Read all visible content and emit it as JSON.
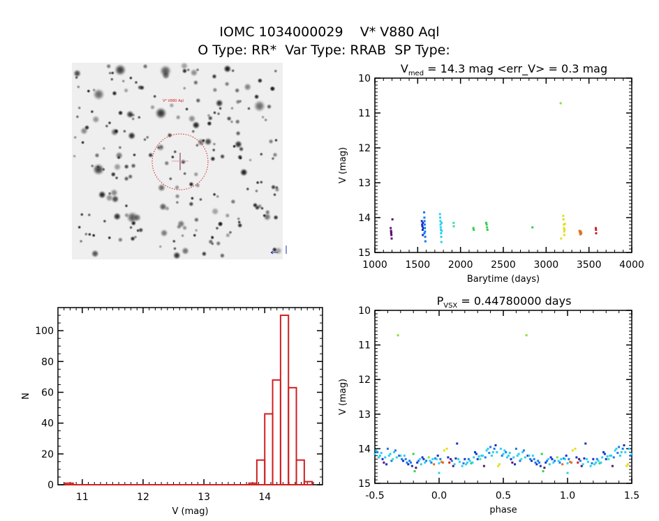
{
  "header": {
    "title_line1": "IOMC 1034000029    V* V880 Aql",
    "title_line2": "O Type: RR*  Var Type: RRAB  SP Type:"
  },
  "image": {
    "target_label": "V* V880 Aql",
    "circle_color": "#d02020"
  },
  "colors": [
    "#5a1070",
    "#1030c8",
    "#1878f0",
    "#28d0f0",
    "#40e0b0",
    "#30d050",
    "#88e030",
    "#e0e020",
    "#e07020",
    "#d02020"
  ],
  "chart_data": [
    {
      "type": "scatter",
      "id": "lightcurve",
      "title_main": "V",
      "title_sub": "med",
      "title_rest": " = 14.3 mag <err_V> = 0.3 mag",
      "xlabel": "Barytime (days)",
      "ylabel": "V (mag)",
      "xlim": [
        1000,
        4000
      ],
      "ylim": [
        15,
        10
      ],
      "xticks": [
        1000,
        1500,
        2000,
        2500,
        3000,
        3500,
        4000
      ],
      "xtick_labels": [
        "1000",
        "1500",
        "2000",
        "2500",
        "3000",
        "3500",
        "4000"
      ],
      "yticks": [
        10,
        11,
        12,
        13,
        14,
        15
      ],
      "ytick_labels": [
        "10",
        "11",
        "12",
        "13",
        "14",
        "15"
      ],
      "points": [
        [
          1185,
          14.3,
          0
        ],
        [
          1188,
          14.38,
          0
        ],
        [
          1190,
          14.45,
          0
        ],
        [
          1193,
          14.5,
          0
        ],
        [
          1196,
          14.6,
          0
        ],
        [
          1205,
          14.05,
          0
        ],
        [
          1192,
          14.42,
          0
        ],
        [
          1548,
          14.1,
          1
        ],
        [
          1552,
          14.2,
          1
        ],
        [
          1555,
          14.25,
          1
        ],
        [
          1558,
          14.35,
          1
        ],
        [
          1560,
          14.5,
          1
        ],
        [
          1562,
          14.15,
          1
        ],
        [
          1565,
          14.3,
          1
        ],
        [
          1575,
          13.85,
          2
        ],
        [
          1578,
          14.0,
          2
        ],
        [
          1580,
          14.1,
          2
        ],
        [
          1582,
          14.2,
          2
        ],
        [
          1584,
          14.3,
          2
        ],
        [
          1586,
          14.4,
          2
        ],
        [
          1588,
          14.55,
          2
        ],
        [
          1590,
          14.68,
          2
        ],
        [
          1578,
          14.45,
          2
        ],
        [
          1760,
          13.9,
          3
        ],
        [
          1763,
          14.0,
          3
        ],
        [
          1765,
          14.1,
          3
        ],
        [
          1767,
          14.2,
          3
        ],
        [
          1769,
          14.28,
          3
        ],
        [
          1771,
          14.35,
          3
        ],
        [
          1773,
          14.45,
          3
        ],
        [
          1775,
          14.55,
          3
        ],
        [
          1777,
          14.7,
          3
        ],
        [
          1779,
          14.15,
          3
        ],
        [
          1781,
          14.38,
          3
        ],
        [
          1920,
          14.15,
          4
        ],
        [
          1922,
          14.25,
          4
        ],
        [
          2150,
          14.3,
          5
        ],
        [
          2155,
          14.35,
          5
        ],
        [
          2300,
          14.15,
          5
        ],
        [
          2305,
          14.2,
          5
        ],
        [
          2310,
          14.28,
          5
        ],
        [
          2315,
          14.35,
          5
        ],
        [
          2840,
          14.28,
          5
        ],
        [
          3170,
          10.72,
          6
        ],
        [
          3175,
          14.6,
          7
        ],
        [
          3200,
          13.95,
          7
        ],
        [
          3203,
          14.05,
          7
        ],
        [
          3206,
          14.2,
          7
        ],
        [
          3208,
          14.3,
          7
        ],
        [
          3210,
          14.4,
          7
        ],
        [
          3212,
          14.5,
          7
        ],
        [
          3215,
          14.35,
          7
        ],
        [
          3220,
          14.18,
          7
        ],
        [
          3390,
          14.38,
          8
        ],
        [
          3395,
          14.42,
          8
        ],
        [
          3400,
          14.48,
          8
        ],
        [
          3405,
          14.4,
          8
        ],
        [
          3410,
          14.45,
          8
        ],
        [
          3580,
          14.3,
          9
        ],
        [
          3582,
          14.35,
          9
        ],
        [
          3584,
          14.45,
          9
        ]
      ]
    },
    {
      "type": "scatter",
      "id": "phased",
      "title_main": "P",
      "title_sub": "VSX",
      "title_rest": " = 0.44780000 days",
      "xlabel": "phase",
      "ylabel": "V (mag)",
      "period_days": 0.4478,
      "xlim": [
        -0.5,
        1.5
      ],
      "ylim": [
        15,
        10
      ],
      "xticks": [
        -0.5,
        0.0,
        0.5,
        1.0,
        1.5
      ],
      "xtick_labels": [
        "-0.5",
        "0.0",
        "0.5",
        "1.0",
        "1.5"
      ],
      "yticks": [
        10,
        11,
        12,
        13,
        14,
        15
      ],
      "ytick_labels": [
        "10",
        "11",
        "12",
        "13",
        "14",
        "15"
      ],
      "points": [
        [
          0.0,
          14.42,
          3
        ],
        [
          0.0,
          14.7,
          3
        ],
        [
          0.01,
          14.3,
          2
        ],
        [
          0.02,
          14.38,
          8
        ],
        [
          0.03,
          14.4,
          8
        ],
        [
          0.04,
          14.05,
          7
        ],
        [
          0.06,
          14.0,
          7
        ],
        [
          0.07,
          14.25,
          1
        ],
        [
          0.08,
          14.4,
          9
        ],
        [
          0.09,
          14.3,
          0
        ],
        [
          0.1,
          14.35,
          2
        ],
        [
          0.11,
          14.5,
          0
        ],
        [
          0.12,
          14.45,
          3
        ],
        [
          0.13,
          14.28,
          1
        ],
        [
          0.14,
          13.85,
          1
        ],
        [
          0.15,
          14.3,
          3
        ],
        [
          0.16,
          14.38,
          3
        ],
        [
          0.18,
          14.5,
          3
        ],
        [
          0.19,
          14.42,
          2
        ],
        [
          0.2,
          14.3,
          1
        ],
        [
          0.21,
          14.45,
          3
        ],
        [
          0.22,
          14.4,
          3
        ],
        [
          0.23,
          14.3,
          2
        ],
        [
          0.24,
          14.35,
          3
        ],
        [
          0.25,
          14.42,
          5
        ],
        [
          0.26,
          14.4,
          3
        ],
        [
          0.27,
          14.25,
          3
        ],
        [
          0.28,
          14.1,
          1
        ],
        [
          0.29,
          14.15,
          1
        ],
        [
          0.3,
          14.3,
          1
        ],
        [
          0.31,
          14.22,
          3
        ],
        [
          0.32,
          14.3,
          4
        ],
        [
          0.33,
          14.2,
          3
        ],
        [
          0.34,
          14.2,
          3
        ],
        [
          0.35,
          14.5,
          0
        ],
        [
          0.36,
          14.25,
          2
        ],
        [
          0.37,
          14.05,
          3
        ],
        [
          0.38,
          14.0,
          3
        ],
        [
          0.39,
          14.12,
          2
        ],
        [
          0.4,
          13.95,
          2
        ],
        [
          0.41,
          14.2,
          3
        ],
        [
          0.42,
          14.1,
          3
        ],
        [
          0.43,
          14.0,
          2
        ],
        [
          0.44,
          13.9,
          1
        ],
        [
          0.45,
          14.1,
          3
        ],
        [
          0.46,
          14.5,
          7
        ],
        [
          0.47,
          14.45,
          7
        ],
        [
          0.48,
          14.0,
          3
        ],
        [
          0.49,
          14.2,
          2
        ],
        [
          0.5,
          14.15,
          3
        ],
        [
          0.51,
          14.05,
          3
        ],
        [
          0.52,
          14.1,
          2
        ],
        [
          0.53,
          14.25,
          3
        ],
        [
          0.54,
          14.2,
          3
        ],
        [
          0.55,
          14.12,
          3
        ],
        [
          0.56,
          14.3,
          1
        ],
        [
          0.57,
          14.4,
          0
        ],
        [
          0.58,
          14.25,
          3
        ],
        [
          0.59,
          14.45,
          1
        ],
        [
          0.6,
          14.0,
          2
        ],
        [
          0.61,
          14.2,
          3
        ],
        [
          0.62,
          14.15,
          3
        ],
        [
          0.63,
          14.35,
          2
        ],
        [
          0.64,
          14.3,
          4
        ],
        [
          0.65,
          14.1,
          3
        ],
        [
          0.66,
          14.05,
          2
        ],
        [
          0.67,
          14.25,
          3
        ],
        [
          0.68,
          10.72,
          6
        ],
        [
          0.69,
          14.2,
          1
        ],
        [
          0.7,
          14.2,
          3
        ],
        [
          0.71,
          14.3,
          2
        ],
        [
          0.72,
          14.35,
          1
        ],
        [
          0.73,
          14.2,
          3
        ],
        [
          0.74,
          14.3,
          2
        ],
        [
          0.75,
          14.4,
          2
        ],
        [
          0.76,
          14.45,
          1
        ],
        [
          0.77,
          14.35,
          2
        ],
        [
          0.78,
          14.4,
          2
        ],
        [
          0.79,
          14.5,
          1
        ],
        [
          0.8,
          14.15,
          5
        ],
        [
          0.81,
          14.65,
          5
        ],
        [
          0.82,
          14.55,
          0
        ],
        [
          0.83,
          14.4,
          1
        ],
        [
          0.84,
          14.35,
          2
        ],
        [
          0.85,
          14.3,
          3
        ],
        [
          0.86,
          14.45,
          3
        ],
        [
          0.87,
          14.25,
          1
        ],
        [
          0.88,
          14.3,
          1
        ],
        [
          0.89,
          14.4,
          3
        ],
        [
          0.9,
          14.35,
          2
        ],
        [
          0.92,
          14.25,
          6
        ],
        [
          0.93,
          14.35,
          3
        ],
        [
          0.94,
          14.4,
          2
        ],
        [
          0.95,
          14.3,
          3
        ],
        [
          0.96,
          14.45,
          8
        ],
        [
          0.97,
          14.28,
          2
        ],
        [
          0.98,
          14.3,
          3
        ],
        [
          0.99,
          14.2,
          1
        ]
      ]
    },
    {
      "type": "bar",
      "id": "histogram",
      "xlabel": "V (mag)",
      "ylabel": "N",
      "xlim": [
        10.6,
        14.95
      ],
      "ylim": [
        0,
        115
      ],
      "xticks": [
        11,
        12,
        13,
        14
      ],
      "xtick_labels": [
        "11",
        "12",
        "13",
        "14"
      ],
      "yticks": [
        0,
        20,
        40,
        60,
        80,
        100
      ],
      "ytick_labels": [
        "0",
        "20",
        "40",
        "60",
        "80",
        "100"
      ],
      "bins": [
        [
          10.72,
          10.85,
          1
        ],
        [
          13.74,
          13.87,
          1
        ],
        [
          13.87,
          14.0,
          16
        ],
        [
          14.0,
          14.13,
          46
        ],
        [
          14.13,
          14.26,
          68
        ],
        [
          14.26,
          14.39,
          110
        ],
        [
          14.39,
          14.52,
          63
        ],
        [
          14.52,
          14.65,
          16
        ],
        [
          14.65,
          14.78,
          2
        ]
      ],
      "bar_color": "#d02020"
    }
  ]
}
